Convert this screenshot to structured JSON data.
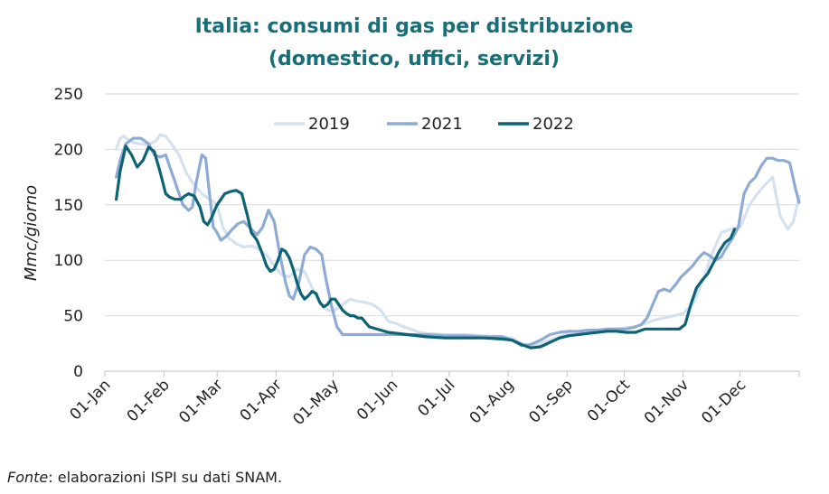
{
  "footer": {
    "source_label": "Fonte",
    "source_text": ": elaborazioni ISPI su dati SNAM."
  },
  "chart_data": {
    "type": "line",
    "title": [
      "Italia: consumi di gas per distribuzione",
      "(domestico, uffici, servizi)"
    ],
    "xlabel": "",
    "ylabel": "Mmc/giorno",
    "ylim": [
      0,
      250
    ],
    "yticks": [
      0,
      50,
      100,
      150,
      200,
      250
    ],
    "xlim": [
      1,
      366
    ],
    "xticks": [
      {
        "day": 1,
        "label": "01-Jan"
      },
      {
        "day": 32,
        "label": "01-Feb"
      },
      {
        "day": 60,
        "label": "01-Mar"
      },
      {
        "day": 91,
        "label": "01-Apr"
      },
      {
        "day": 121,
        "label": "01-May"
      },
      {
        "day": 152,
        "label": "01-Jun"
      },
      {
        "day": 182,
        "label": "01-Jul"
      },
      {
        "day": 213,
        "label": "01-Aug"
      },
      {
        "day": 244,
        "label": "01-Sep"
      },
      {
        "day": 274,
        "label": "01-Oct"
      },
      {
        "day": 305,
        "label": "01-Nov"
      },
      {
        "day": 335,
        "label": "01-Dec"
      }
    ],
    "grid": true,
    "legend_position": "top-center",
    "series": [
      {
        "name": "2019",
        "color": "#d5e0f0",
        "x": [
          7,
          9,
          11,
          13,
          16,
          20,
          24,
          28,
          30,
          33,
          36,
          40,
          44,
          48,
          52,
          56,
          58,
          60,
          63,
          66,
          70,
          74,
          78,
          82,
          86,
          90,
          94,
          98,
          102,
          106,
          110,
          114,
          118,
          122,
          126,
          130,
          134,
          138,
          142,
          146,
          150,
          154,
          158,
          162,
          166,
          170,
          180,
          190,
          200,
          210,
          215,
          220,
          225,
          230,
          235,
          240,
          245,
          250,
          255,
          260,
          265,
          270,
          275,
          280,
          285,
          290,
          295,
          300,
          305,
          310,
          315,
          320,
          325,
          330,
          335,
          340,
          344,
          348,
          352,
          356,
          360,
          363,
          366
        ],
        "y": [
          200,
          210,
          212,
          209,
          206,
          205,
          204,
          208,
          213,
          212,
          205,
          195,
          178,
          168,
          160,
          155,
          153,
          150,
          130,
          120,
          115,
          112,
          113,
          110,
          105,
          95,
          87,
          85,
          92,
          90,
          75,
          62,
          55,
          55,
          60,
          65,
          63,
          62,
          60,
          55,
          45,
          43,
          40,
          38,
          35,
          34,
          33,
          33,
          32,
          31,
          30,
          25,
          23,
          25,
          28,
          31,
          34,
          35,
          36,
          37,
          38,
          38,
          39,
          40,
          43,
          46,
          48,
          50,
          52,
          60,
          80,
          105,
          125,
          128,
          130,
          150,
          160,
          168,
          175,
          140,
          128,
          135,
          158
        ]
      },
      {
        "name": "2021",
        "color": "#8eabd5",
        "x": [
          7,
          9,
          12,
          16,
          20,
          24,
          27,
          30,
          33,
          36,
          39,
          42,
          45,
          47,
          49,
          52,
          54,
          56,
          58,
          60,
          62,
          65,
          68,
          71,
          74,
          78,
          81,
          84,
          87,
          90,
          93,
          96,
          98,
          100,
          103,
          106,
          109,
          112,
          115,
          117,
          120,
          123,
          126,
          129,
          132,
          140,
          150,
          160,
          170,
          180,
          190,
          200,
          210,
          215,
          220,
          225,
          230,
          235,
          240,
          245,
          250,
          255,
          260,
          265,
          270,
          275,
          280,
          283,
          286,
          289,
          292,
          295,
          298,
          301,
          304,
          307,
          310,
          313,
          316,
          319,
          322,
          325,
          328,
          331,
          334,
          337,
          340,
          343,
          346,
          349,
          352,
          355,
          358,
          361,
          364,
          366
        ],
        "y": [
          175,
          190,
          205,
          210,
          210,
          205,
          195,
          193,
          195,
          180,
          165,
          150,
          145,
          148,
          170,
          195,
          192,
          160,
          130,
          125,
          118,
          122,
          128,
          133,
          135,
          128,
          123,
          130,
          145,
          135,
          105,
          80,
          68,
          65,
          80,
          105,
          112,
          110,
          105,
          85,
          60,
          40,
          33,
          33,
          33,
          33,
          33,
          33,
          33,
          32,
          32,
          31,
          31,
          28,
          23,
          24,
          28,
          33,
          35,
          36,
          36,
          37,
          37,
          38,
          38,
          38,
          40,
          42,
          48,
          60,
          72,
          74,
          72,
          78,
          85,
          90,
          95,
          102,
          107,
          104,
          100,
          103,
          112,
          120,
          130,
          160,
          170,
          175,
          185,
          192,
          192,
          190,
          190,
          188,
          165,
          152
        ]
      },
      {
        "name": "2022",
        "color": "#0d6374",
        "x": [
          7,
          9,
          12,
          15,
          18,
          21,
          24,
          27,
          30,
          33,
          35,
          38,
          41,
          43,
          45,
          48,
          51,
          53,
          55,
          57,
          60,
          62,
          64,
          67,
          70,
          73,
          76,
          78,
          81,
          84,
          86,
          88,
          90,
          92,
          94,
          96,
          98,
          100,
          102,
          104,
          106,
          108,
          110,
          112,
          114,
          116,
          118,
          120,
          122,
          124,
          126,
          128,
          130,
          132,
          134,
          136,
          140,
          150,
          160,
          170,
          180,
          190,
          200,
          210,
          215,
          220,
          225,
          230,
          235,
          240,
          245,
          250,
          255,
          260,
          265,
          270,
          275,
          280,
          285,
          290,
          295,
          300,
          303,
          306,
          309,
          312,
          315,
          318,
          321,
          324,
          327,
          330,
          332
        ],
        "y": [
          155,
          180,
          203,
          195,
          184,
          190,
          202,
          198,
          180,
          160,
          157,
          155,
          155,
          158,
          160,
          158,
          148,
          135,
          132,
          138,
          150,
          155,
          160,
          162,
          163,
          160,
          140,
          125,
          118,
          105,
          95,
          90,
          92,
          100,
          110,
          108,
          102,
          92,
          80,
          70,
          65,
          68,
          72,
          70,
          62,
          58,
          60,
          65,
          65,
          60,
          55,
          52,
          50,
          50,
          48,
          48,
          40,
          35,
          33,
          31,
          30,
          30,
          30,
          29,
          28,
          24,
          21,
          22,
          26,
          30,
          32,
          33,
          34,
          35,
          36,
          36,
          35,
          35,
          38,
          38,
          38,
          38,
          38,
          42,
          60,
          75,
          82,
          88,
          98,
          108,
          116,
          120,
          128
        ]
      }
    ]
  }
}
